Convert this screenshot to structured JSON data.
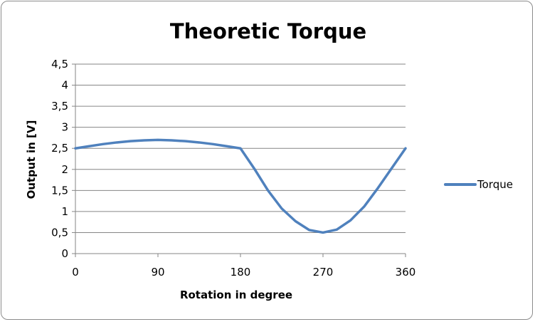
{
  "chart_data": {
    "type": "line",
    "title": "Theoretic Torque",
    "xlabel": "Rotation in degree",
    "ylabel": "Output in [V]",
    "xlim": [
      0,
      360
    ],
    "ylim": [
      0,
      4.5
    ],
    "x_ticks": [
      "0",
      "90",
      "180",
      "270",
      "360"
    ],
    "x_tick_values": [
      0,
      90,
      180,
      270,
      360
    ],
    "y_ticks": [
      "0",
      "0,5",
      "1",
      "1,5",
      "2",
      "2,5",
      "3",
      "3,5",
      "4",
      "4,5"
    ],
    "y_tick_values": [
      0,
      0.5,
      1,
      1.5,
      2,
      2.5,
      3,
      3.5,
      4,
      4.5
    ],
    "grid": "horizontal",
    "legend_position": "right",
    "series": [
      {
        "name": "Torque",
        "color": "#4f81bd",
        "x": [
          0,
          15,
          30,
          45,
          60,
          75,
          90,
          105,
          120,
          135,
          150,
          165,
          180,
          195,
          210,
          225,
          240,
          255,
          270,
          285,
          300,
          315,
          330,
          345,
          360
        ],
        "y": [
          2.5,
          2.55,
          2.6,
          2.64,
          2.67,
          2.69,
          2.7,
          2.69,
          2.67,
          2.64,
          2.6,
          2.55,
          2.5,
          2.02,
          1.5,
          1.07,
          0.77,
          0.56,
          0.5,
          0.57,
          0.79,
          1.12,
          1.56,
          2.03,
          2.5
        ]
      }
    ]
  }
}
